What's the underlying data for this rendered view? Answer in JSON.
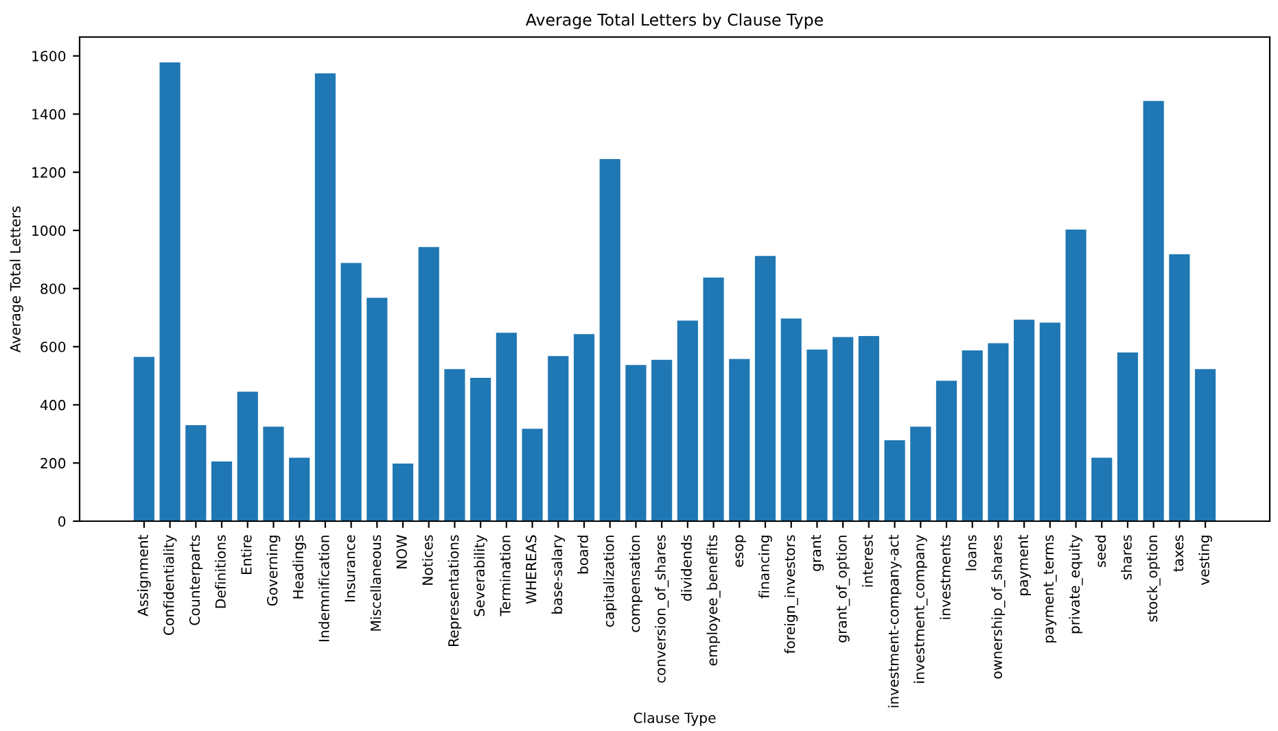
{
  "chart_data": {
    "type": "bar",
    "title": "Average Total Letters by Clause Type",
    "xlabel": "Clause Type",
    "ylabel": "Average Total Letters",
    "categories": [
      "Assignment",
      "Confidentiality",
      "Counterparts",
      "Definitions",
      "Entire",
      "Governing",
      "Headings",
      "Indemnification",
      "Insurance",
      "Miscellaneous",
      "NOW",
      "Notices",
      "Representations",
      "Severability",
      "Termination",
      "WHEREAS",
      "base-salary",
      "board",
      "capitalization",
      "compensation",
      "conversion_of_shares",
      "dividends",
      "employee_benefits",
      "esop",
      "financing",
      "foreign_investors",
      "grant",
      "grant_of_option",
      "interest",
      "investment-company-act",
      "investment_company",
      "investments",
      "loans",
      "ownership_of_shares",
      "payment",
      "payment_terms",
      "private_equity",
      "seed",
      "shares",
      "stock_option",
      "taxes",
      "vesting"
    ],
    "values": [
      565,
      1578,
      330,
      205,
      445,
      325,
      218,
      1540,
      888,
      768,
      198,
      943,
      523,
      493,
      648,
      318,
      568,
      643,
      1245,
      537,
      555,
      690,
      838,
      558,
      912,
      697,
      590,
      633,
      637,
      278,
      325,
      483,
      587,
      612,
      693,
      683,
      1003,
      218,
      580,
      1445,
      918,
      523
    ],
    "color": "#1f77b4",
    "ylim": [
      0,
      1665
    ],
    "yticks": [
      0,
      200,
      400,
      600,
      800,
      1000,
      1200,
      1400,
      1600
    ],
    "grid": false,
    "legend": false
  }
}
